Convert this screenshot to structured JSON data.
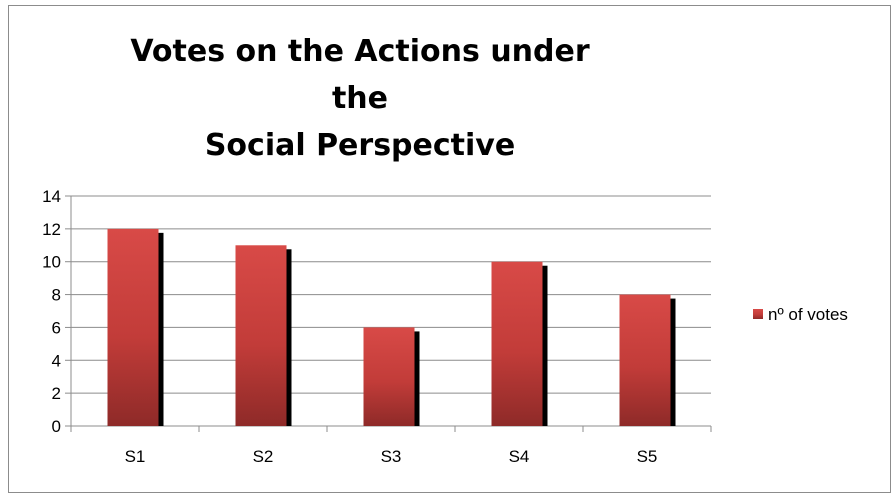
{
  "chart_data": {
    "type": "bar",
    "title_line1": "Votes on the Actions under the",
    "title_line2": "Social Perspective",
    "categories": [
      "S1",
      "S2",
      "S3",
      "S4",
      "S5"
    ],
    "series": [
      {
        "name": "nº of votes",
        "values": [
          12,
          11,
          6,
          10,
          8
        ]
      }
    ],
    "y_ticks": [
      "0",
      "2",
      "4",
      "6",
      "8",
      "10",
      "12",
      "14"
    ],
    "ylim": [
      0,
      14
    ],
    "grid": true,
    "legend_position": "right",
    "colors": {
      "bar_top": "#d84a47",
      "bar_bottom": "#8e2a28",
      "shadow": "#000000",
      "grid": "#8c8c8c"
    }
  }
}
